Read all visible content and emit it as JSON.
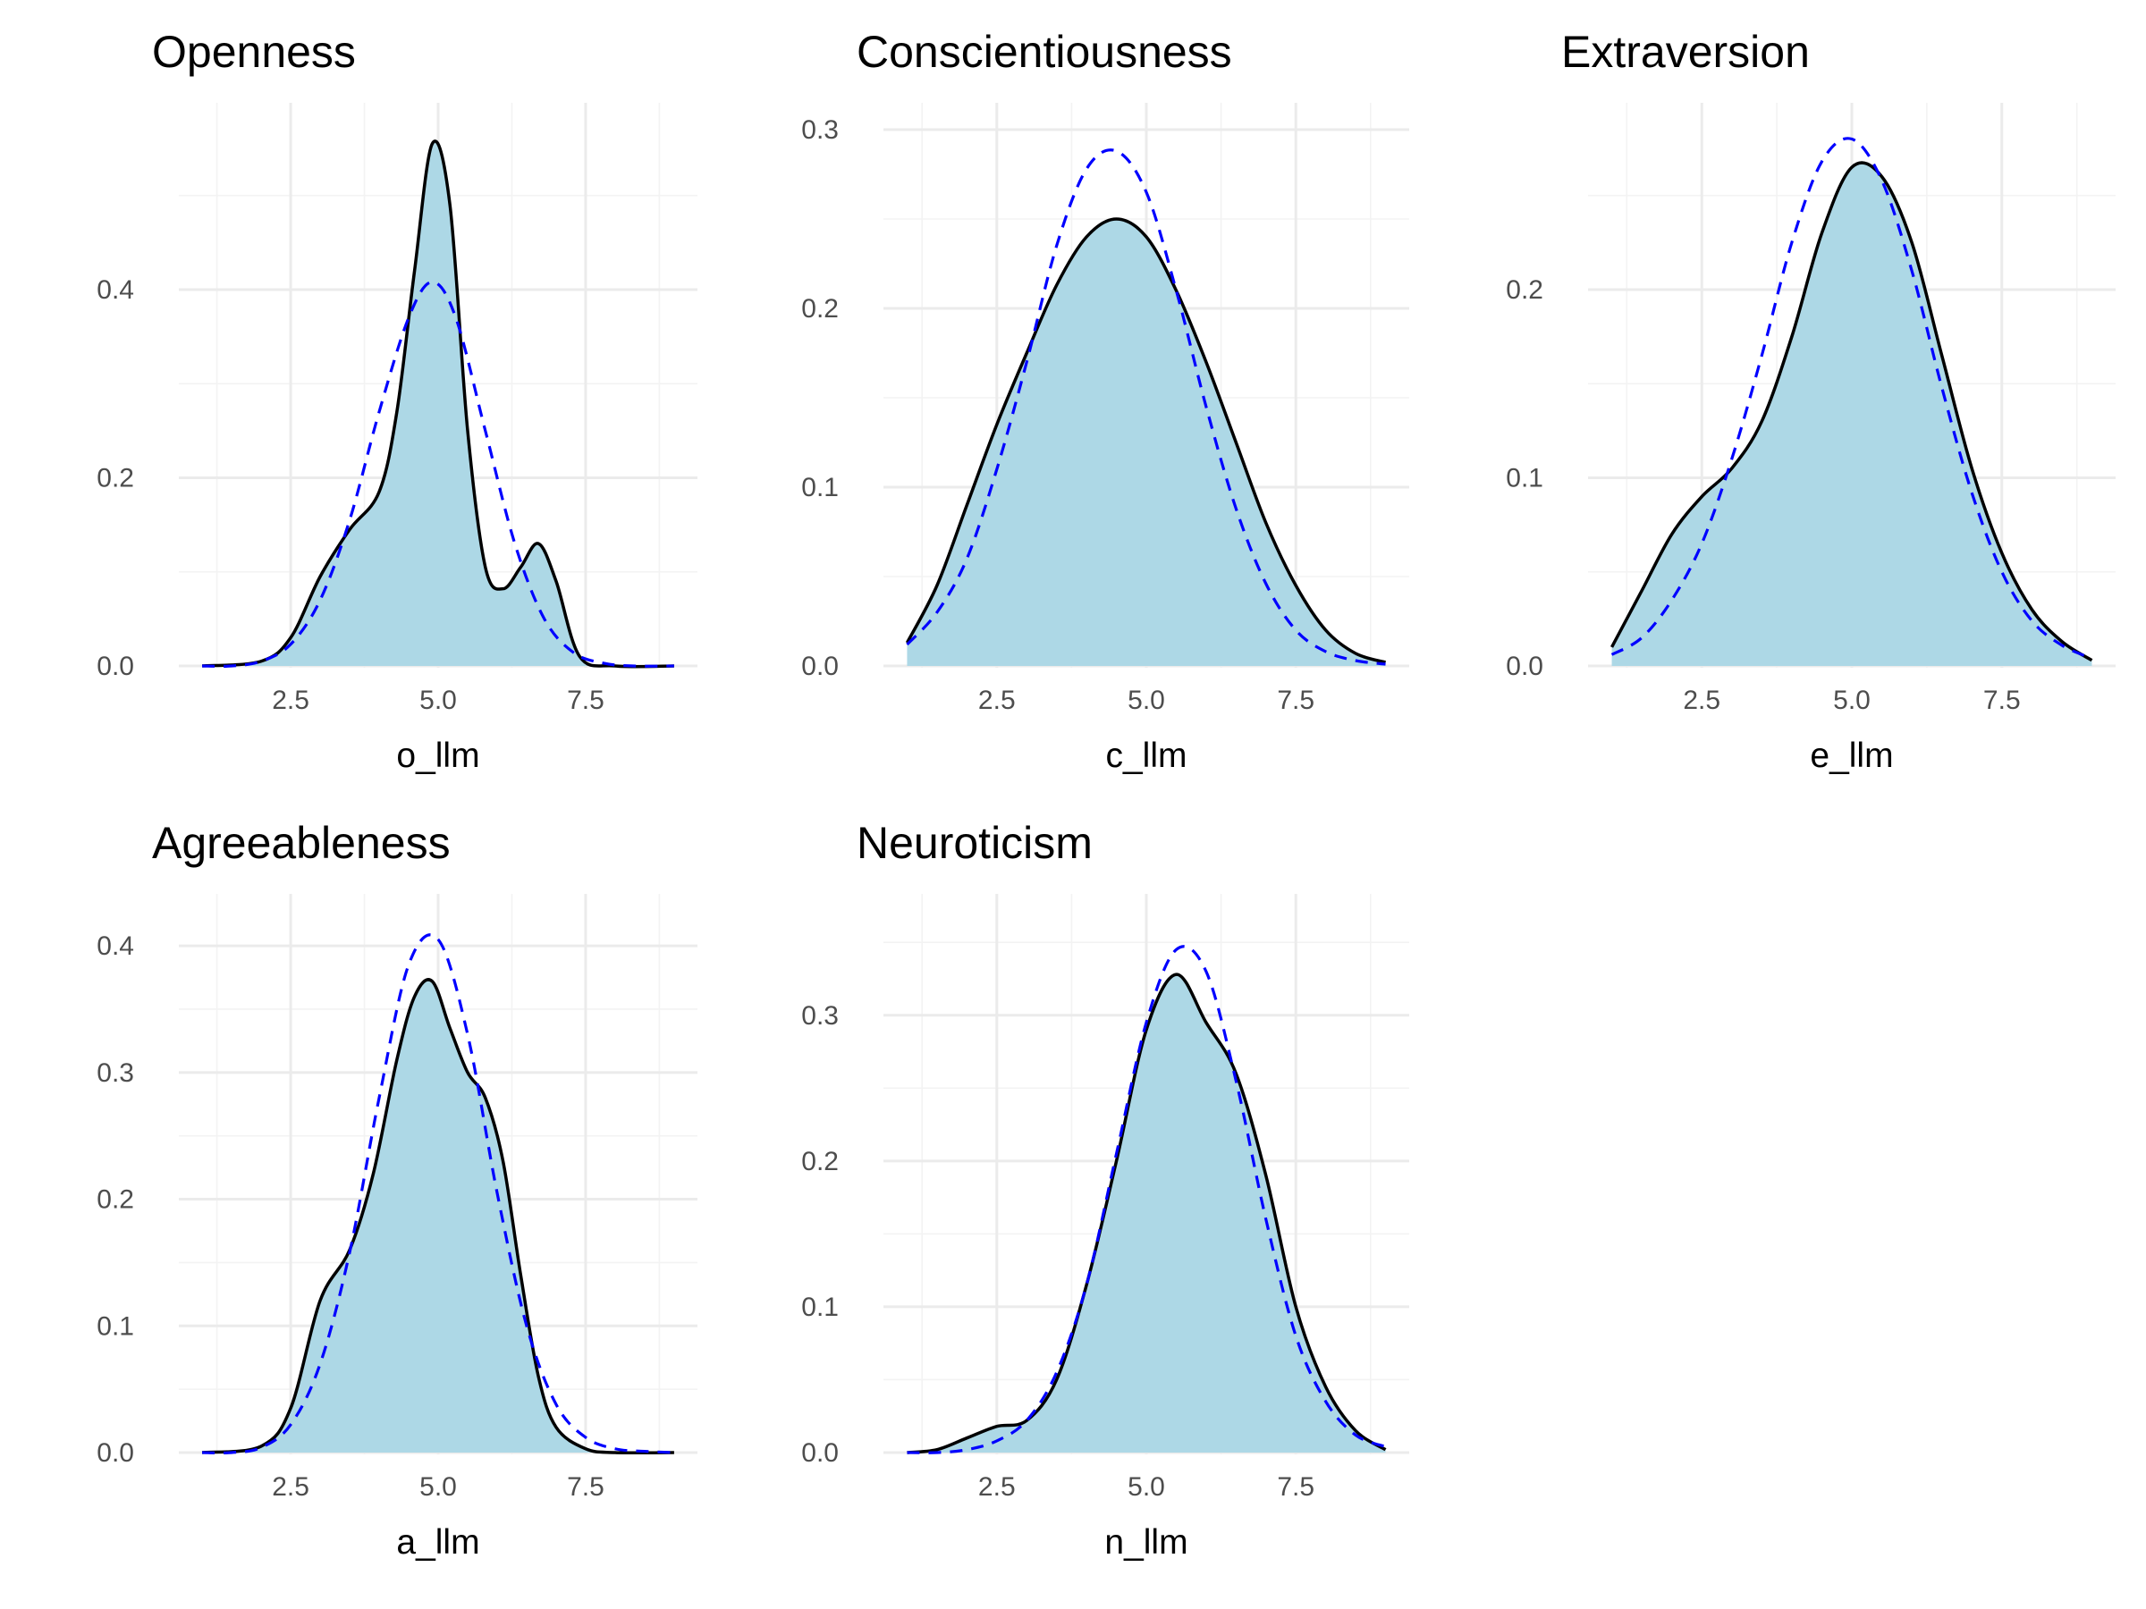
{
  "chart_data": [
    {
      "type": "area",
      "title": "Openness",
      "xlabel": "o_llm",
      "ylabel": "",
      "xlim": [
        1,
        9
      ],
      "ylim": [
        0,
        0.57
      ],
      "x_ticks": [
        2.5,
        5.0,
        7.5
      ],
      "x_tick_labels": [
        "2.5",
        "5.0",
        "7.5"
      ],
      "y_ticks": [
        0.0,
        0.2,
        0.4
      ],
      "y_tick_labels": [
        "0.0",
        "0.2",
        "0.4"
      ],
      "grid": true,
      "series": [
        {
          "role": "density",
          "x": [
            1.0,
            2.0,
            2.5,
            3.0,
            3.5,
            4.0,
            4.3,
            4.6,
            4.9,
            5.2,
            5.5,
            5.8,
            6.1,
            6.4,
            6.7,
            7.0,
            7.4,
            8.0,
            9.0
          ],
          "values": [
            0.0,
            0.005,
            0.03,
            0.095,
            0.145,
            0.185,
            0.27,
            0.42,
            0.555,
            0.49,
            0.25,
            0.105,
            0.082,
            0.105,
            0.13,
            0.09,
            0.01,
            0.0,
            0.0
          ]
        },
        {
          "role": "normal",
          "x": [
            1.0,
            1.5,
            2.0,
            2.5,
            3.0,
            3.5,
            4.0,
            4.5,
            4.9,
            5.3,
            5.8,
            6.3,
            6.8,
            7.3,
            7.8,
            8.3,
            9.0
          ],
          "values": [
            0.0,
            0.0,
            0.005,
            0.023,
            0.07,
            0.155,
            0.27,
            0.37,
            0.408,
            0.37,
            0.25,
            0.13,
            0.05,
            0.014,
            0.003,
            0.0,
            0.0
          ]
        }
      ]
    },
    {
      "type": "area",
      "title": "Conscientiousness",
      "xlabel": "c_llm",
      "ylabel": "",
      "xlim": [
        1,
        9
      ],
      "ylim": [
        0,
        0.3
      ],
      "x_ticks": [
        2.5,
        5.0,
        7.5
      ],
      "x_tick_labels": [
        "2.5",
        "5.0",
        "7.5"
      ],
      "y_ticks": [
        0.0,
        0.1,
        0.2,
        0.3
      ],
      "y_tick_labels": [
        "0.0",
        "0.1",
        "0.2",
        "0.3"
      ],
      "grid": true,
      "series": [
        {
          "role": "density",
          "x": [
            1.0,
            1.5,
            2.0,
            2.5,
            3.0,
            3.5,
            4.0,
            4.5,
            5.0,
            5.5,
            6.0,
            6.5,
            7.0,
            7.5,
            8.0,
            8.5,
            9.0
          ],
          "values": [
            0.013,
            0.045,
            0.09,
            0.135,
            0.175,
            0.213,
            0.24,
            0.25,
            0.24,
            0.21,
            0.17,
            0.125,
            0.08,
            0.045,
            0.02,
            0.007,
            0.002
          ]
        },
        {
          "role": "normal",
          "x": [
            1.0,
            1.5,
            2.0,
            2.5,
            3.0,
            3.5,
            4.0,
            4.5,
            5.0,
            5.5,
            6.0,
            6.5,
            7.0,
            7.5,
            8.0,
            8.5,
            9.0
          ],
          "values": [
            0.012,
            0.03,
            0.06,
            0.11,
            0.17,
            0.235,
            0.278,
            0.288,
            0.265,
            0.21,
            0.145,
            0.088,
            0.046,
            0.02,
            0.008,
            0.003,
            0.001
          ]
        }
      ]
    },
    {
      "type": "area",
      "title": "Extraversion",
      "xlabel": "e_llm",
      "ylabel": "",
      "xlim": [
        1,
        9
      ],
      "ylim": [
        0,
        0.285
      ],
      "x_ticks": [
        2.5,
        5.0,
        7.5
      ],
      "x_tick_labels": [
        "2.5",
        "5.0",
        "7.5"
      ],
      "y_ticks": [
        0.0,
        0.1,
        0.2
      ],
      "y_tick_labels": [
        "0.0",
        "0.1",
        "0.2"
      ],
      "grid": true,
      "series": [
        {
          "role": "density",
          "x": [
            1.0,
            1.5,
            2.0,
            2.5,
            3.0,
            3.5,
            4.0,
            4.5,
            5.0,
            5.5,
            6.0,
            6.5,
            7.0,
            7.5,
            8.0,
            8.5,
            9.0
          ],
          "values": [
            0.01,
            0.04,
            0.07,
            0.09,
            0.105,
            0.13,
            0.175,
            0.23,
            0.265,
            0.26,
            0.225,
            0.165,
            0.105,
            0.06,
            0.03,
            0.013,
            0.003
          ]
        },
        {
          "role": "normal",
          "x": [
            1.0,
            1.5,
            2.0,
            2.5,
            3.0,
            3.5,
            4.0,
            4.5,
            5.0,
            5.5,
            6.0,
            6.5,
            7.0,
            7.5,
            8.0,
            8.5,
            9.0
          ],
          "values": [
            0.006,
            0.015,
            0.035,
            0.065,
            0.11,
            0.165,
            0.225,
            0.268,
            0.28,
            0.258,
            0.21,
            0.148,
            0.092,
            0.05,
            0.024,
            0.011,
            0.004
          ]
        }
      ]
    },
    {
      "type": "area",
      "title": "Agreeableness",
      "xlabel": "a_llm",
      "ylabel": "",
      "xlim": [
        1,
        9
      ],
      "ylim": [
        0,
        0.42
      ],
      "x_ticks": [
        2.5,
        5.0,
        7.5
      ],
      "x_tick_labels": [
        "2.5",
        "5.0",
        "7.5"
      ],
      "y_ticks": [
        0.0,
        0.1,
        0.2,
        0.3,
        0.4
      ],
      "y_tick_labels": [
        "0.0",
        "0.1",
        "0.2",
        "0.3",
        "0.4"
      ],
      "grid": true,
      "series": [
        {
          "role": "density",
          "x": [
            1.0,
            2.0,
            2.5,
            3.0,
            3.5,
            3.9,
            4.3,
            4.6,
            4.9,
            5.2,
            5.5,
            5.8,
            6.1,
            6.4,
            6.7,
            7.0,
            7.5,
            8.0,
            9.0
          ],
          "values": [
            0.0,
            0.005,
            0.035,
            0.12,
            0.16,
            0.22,
            0.31,
            0.36,
            0.372,
            0.335,
            0.3,
            0.28,
            0.23,
            0.14,
            0.06,
            0.02,
            0.003,
            0.0,
            0.0
          ]
        },
        {
          "role": "normal",
          "x": [
            1.0,
            1.5,
            2.0,
            2.5,
            3.0,
            3.5,
            4.0,
            4.5,
            5.0,
            5.5,
            6.0,
            6.5,
            7.0,
            7.5,
            8.0,
            8.5,
            9.0
          ],
          "values": [
            0.0,
            0.0,
            0.004,
            0.022,
            0.07,
            0.158,
            0.28,
            0.385,
            0.405,
            0.33,
            0.205,
            0.1,
            0.038,
            0.012,
            0.003,
            0.001,
            0.0
          ]
        }
      ]
    },
    {
      "type": "area",
      "title": "Neuroticism",
      "xlabel": "n_llm",
      "ylabel": "",
      "xlim": [
        1,
        9
      ],
      "ylim": [
        0,
        0.365
      ],
      "x_ticks": [
        2.5,
        5.0,
        7.5
      ],
      "x_tick_labels": [
        "2.5",
        "5.0",
        "7.5"
      ],
      "y_ticks": [
        0.0,
        0.1,
        0.2,
        0.3
      ],
      "y_tick_labels": [
        "0.0",
        "0.1",
        "0.2",
        "0.3"
      ],
      "grid": true,
      "series": [
        {
          "role": "density",
          "x": [
            1.0,
            1.5,
            2.0,
            2.5,
            3.0,
            3.5,
            4.0,
            4.5,
            5.0,
            5.5,
            6.0,
            6.5,
            7.0,
            7.5,
            8.0,
            8.5,
            9.0
          ],
          "values": [
            0.0,
            0.002,
            0.01,
            0.018,
            0.022,
            0.05,
            0.115,
            0.2,
            0.29,
            0.328,
            0.295,
            0.26,
            0.19,
            0.1,
            0.045,
            0.015,
            0.002
          ]
        },
        {
          "role": "normal",
          "x": [
            1.0,
            1.5,
            2.0,
            2.5,
            3.0,
            3.5,
            4.0,
            4.5,
            5.0,
            5.5,
            6.0,
            6.5,
            7.0,
            7.5,
            8.0,
            8.5,
            9.0
          ],
          "values": [
            0.0,
            0.0,
            0.002,
            0.008,
            0.022,
            0.055,
            0.115,
            0.205,
            0.295,
            0.345,
            0.33,
            0.255,
            0.16,
            0.08,
            0.035,
            0.012,
            0.004
          ]
        }
      ]
    }
  ]
}
